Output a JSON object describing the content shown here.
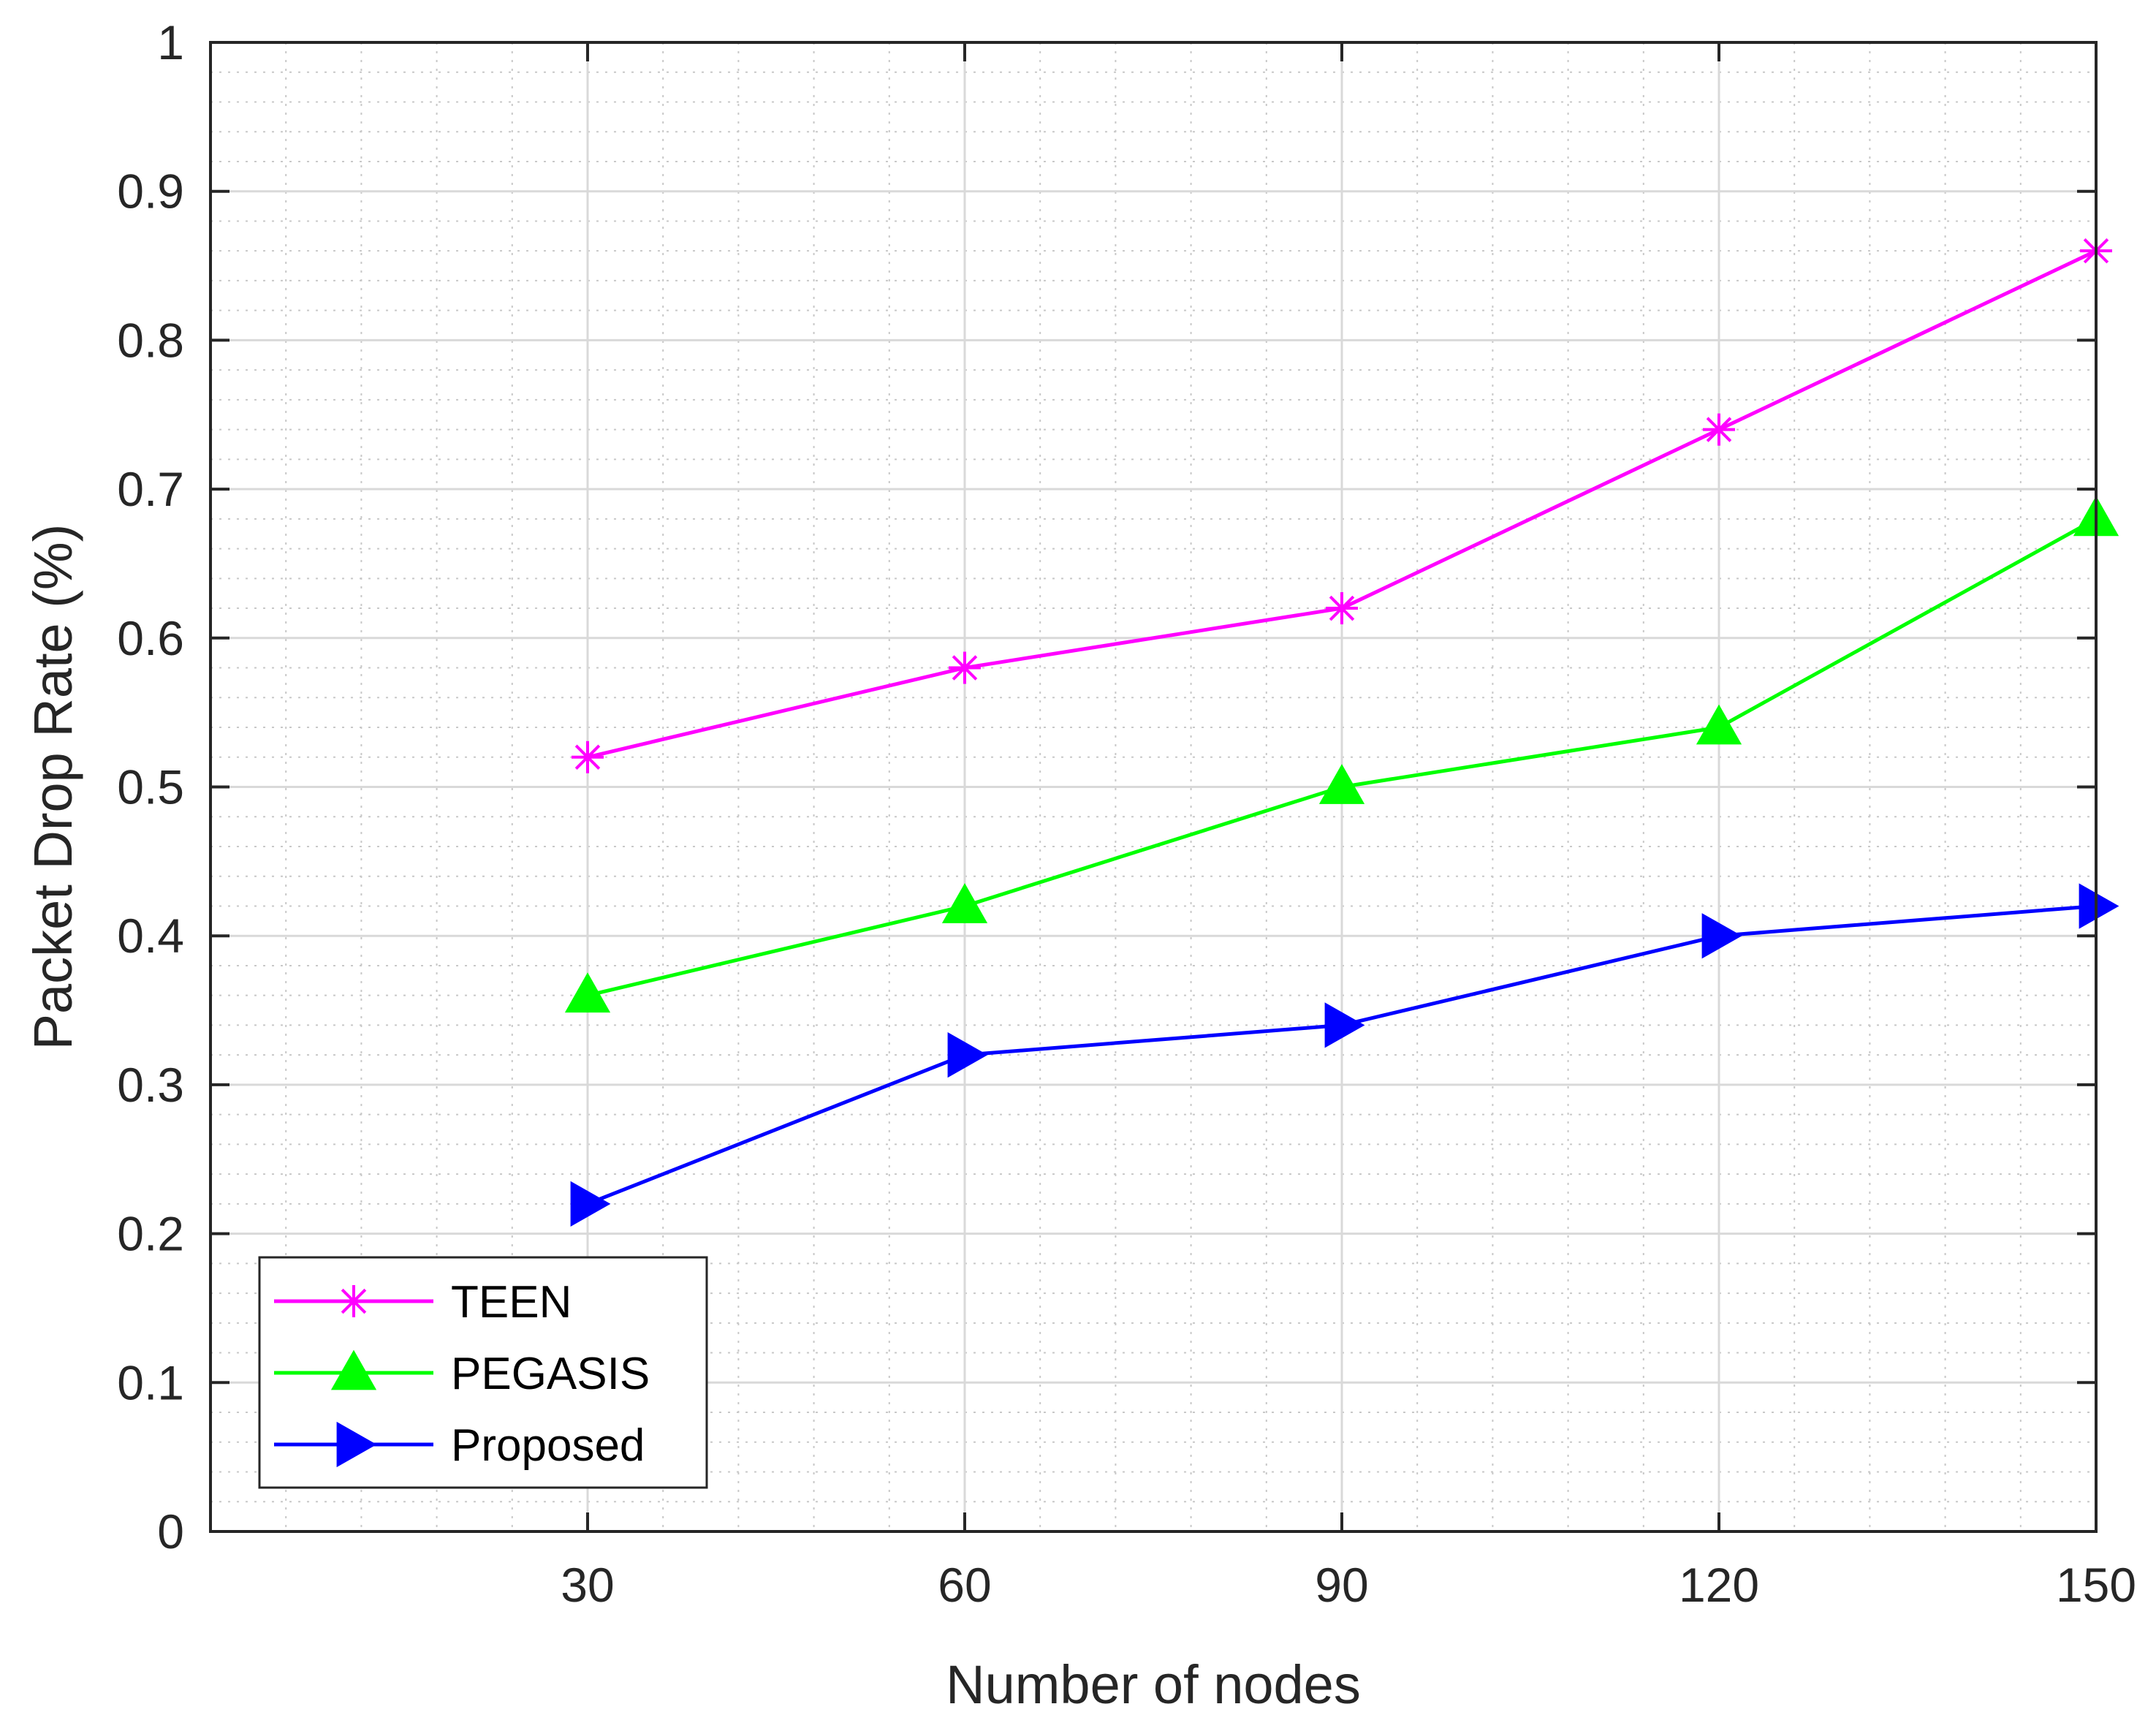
{
  "chart_data": {
    "type": "line",
    "title": "",
    "xlabel": "Number of nodes",
    "ylabel": "Packet Drop Rate (%)",
    "x": [
      30,
      60,
      90,
      120,
      150
    ],
    "xlim": [
      0,
      150
    ],
    "ylim": [
      0,
      1
    ],
    "xticks": [
      30,
      60,
      90,
      120,
      150
    ],
    "xtick_labels": [
      "30",
      "60",
      "90",
      "120",
      "150"
    ],
    "yticks": [
      0,
      0.1,
      0.2,
      0.3,
      0.4,
      0.5,
      0.6,
      0.7,
      0.8,
      0.9,
      1
    ],
    "ytick_labels": [
      "0",
      "0.1",
      "0.2",
      "0.3",
      "0.4",
      "0.5",
      "0.6",
      "0.7",
      "0.8",
      "0.9",
      "1"
    ],
    "grid": true,
    "minor_grid": true,
    "legend_position": "bottom-left",
    "series": [
      {
        "name": "TEEN",
        "marker": "asterisk",
        "color": "#ff00ff",
        "values": [
          0.52,
          0.58,
          0.62,
          0.74,
          0.86
        ]
      },
      {
        "name": "PEGASIS",
        "marker": "triangle-up",
        "color": "#00ff00",
        "values": [
          0.36,
          0.42,
          0.5,
          0.54,
          0.68
        ]
      },
      {
        "name": "Proposed",
        "marker": "triangle-right",
        "color": "#0000ff",
        "values": [
          0.22,
          0.32,
          0.34,
          0.4,
          0.42
        ]
      }
    ]
  }
}
